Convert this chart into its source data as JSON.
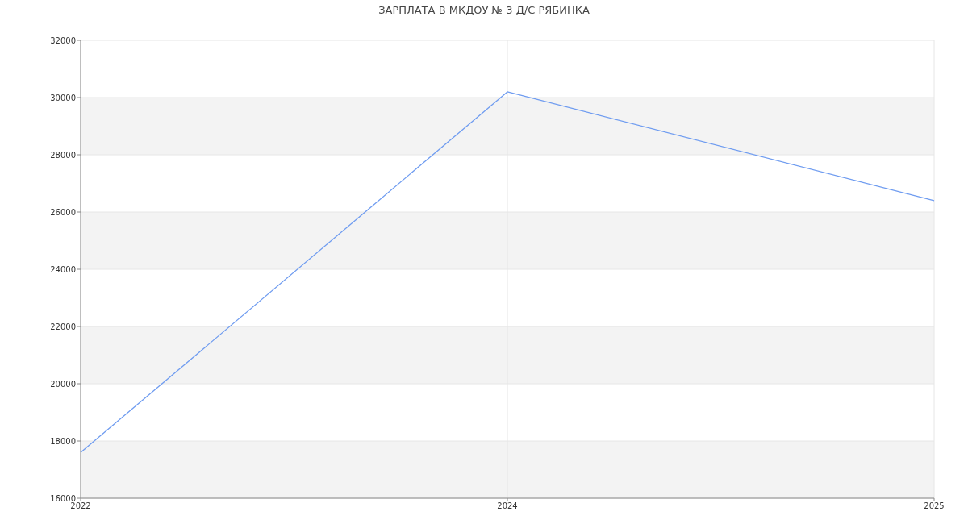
{
  "chart_data": {
    "type": "line",
    "title": "ЗАРПЛАТА В МКДОУ № 3 Д/С РЯБИНКА",
    "categories": [
      "2022",
      "2024",
      "2025"
    ],
    "series": [
      {
        "color": "#6f9cf0",
        "values": [
          17600,
          30200,
          26400
        ]
      }
    ],
    "ylim": [
      16000,
      32000
    ],
    "yticks": [
      16000,
      18000,
      20000,
      22000,
      24000,
      26000,
      28000,
      30000,
      32000
    ],
    "grid": true,
    "legend": false,
    "marker": "none",
    "line_style": "solid"
  }
}
